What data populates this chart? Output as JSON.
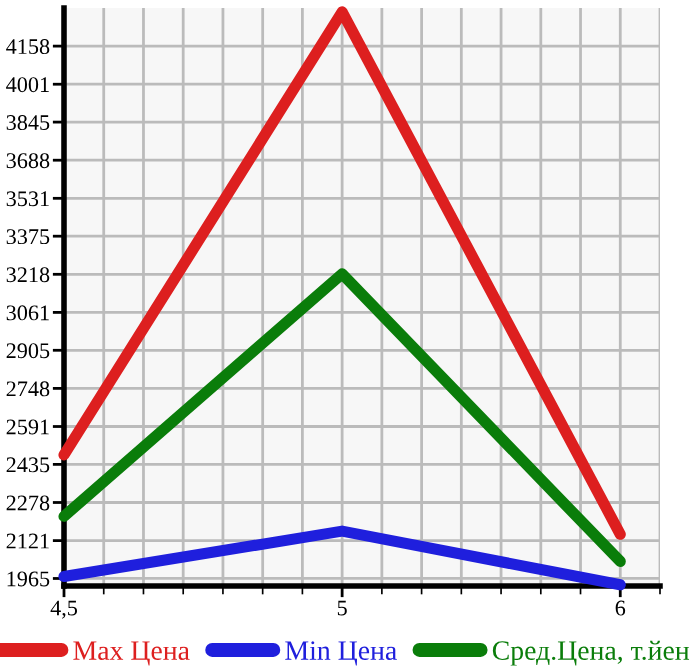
{
  "chart_data": {
    "type": "line",
    "categories": [
      "4,5",
      "5",
      "6"
    ],
    "series": [
      {
        "name": "Max Цена",
        "color": "#dd1f1f",
        "values": [
          2474,
          4299,
          2147
        ]
      },
      {
        "name": "Min Цена",
        "color": "#1f1fdd",
        "values": [
          1973,
          2160,
          1939
        ]
      },
      {
        "name": "Сред.Цена, т.йен",
        "color": "#0a7d0a",
        "values": [
          2221,
          3220,
          2035
        ]
      }
    ],
    "ylim": [
      1934,
      4315
    ],
    "yticks": [
      1965,
      2121,
      2278,
      2435,
      2591,
      2748,
      2905,
      3061,
      3218,
      3375,
      3531,
      3688,
      3845,
      4001,
      4158
    ],
    "grid": true,
    "legend": "bottom",
    "marker": "none",
    "line_style": "solid"
  }
}
